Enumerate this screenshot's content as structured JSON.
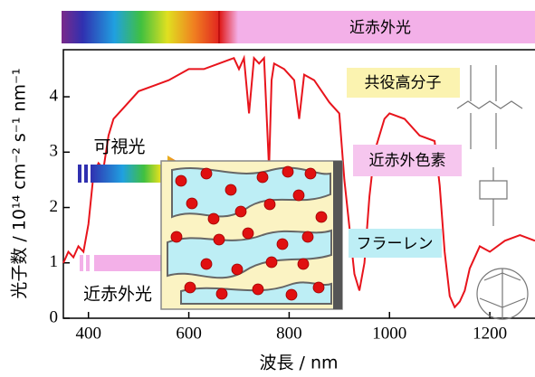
{
  "chart_data": {
    "type": "line",
    "x_label": "波長 / nm",
    "y_label": "光子数 / 10¹⁴ cm⁻² s⁻¹ nm⁻¹",
    "annotations": [
      "近赤外光",
      "共役高分子",
      "可視光",
      "近赤外色素",
      "フラーレン",
      "近赤外光"
    ],
    "color": "#e8141c",
    "x": [
      350,
      360,
      370,
      380,
      390,
      400,
      410,
      420,
      430,
      440,
      450,
      470,
      500,
      530,
      560,
      600,
      630,
      660,
      690,
      700,
      710,
      720,
      730,
      740,
      750,
      760,
      765,
      770,
      790,
      810,
      820,
      830,
      850,
      880,
      900,
      910,
      930,
      940,
      950,
      960,
      970,
      990,
      1000,
      1030,
      1060,
      1090,
      1100,
      1110,
      1120,
      1130,
      1140,
      1150,
      1160,
      1180,
      1200,
      1230,
      1260,
      1290
    ],
    "values": [
      1.0,
      1.2,
      1.1,
      1.3,
      1.2,
      1.7,
      2.6,
      2.8,
      2.7,
      3.3,
      3.6,
      3.8,
      4.1,
      4.2,
      4.3,
      4.5,
      4.5,
      4.6,
      4.7,
      4.5,
      4.7,
      3.7,
      4.7,
      4.6,
      4.7,
      2.7,
      4.3,
      4.6,
      4.5,
      4.3,
      3.6,
      4.4,
      4.3,
      3.9,
      3.7,
      2.5,
      0.8,
      0.5,
      1.0,
      2.2,
      3.0,
      3.6,
      3.7,
      3.6,
      3.3,
      3.2,
      2.4,
      1.2,
      0.4,
      0.2,
      0.3,
      0.5,
      0.9,
      1.3,
      1.2,
      1.4,
      1.5,
      1.4
    ],
    "xlim": [
      350,
      1290
    ],
    "ylim": [
      0,
      4.85
    ],
    "xticks": [
      400,
      600,
      800,
      1000,
      1200
    ],
    "yticks": [
      0,
      1,
      2,
      3,
      4
    ]
  }
}
